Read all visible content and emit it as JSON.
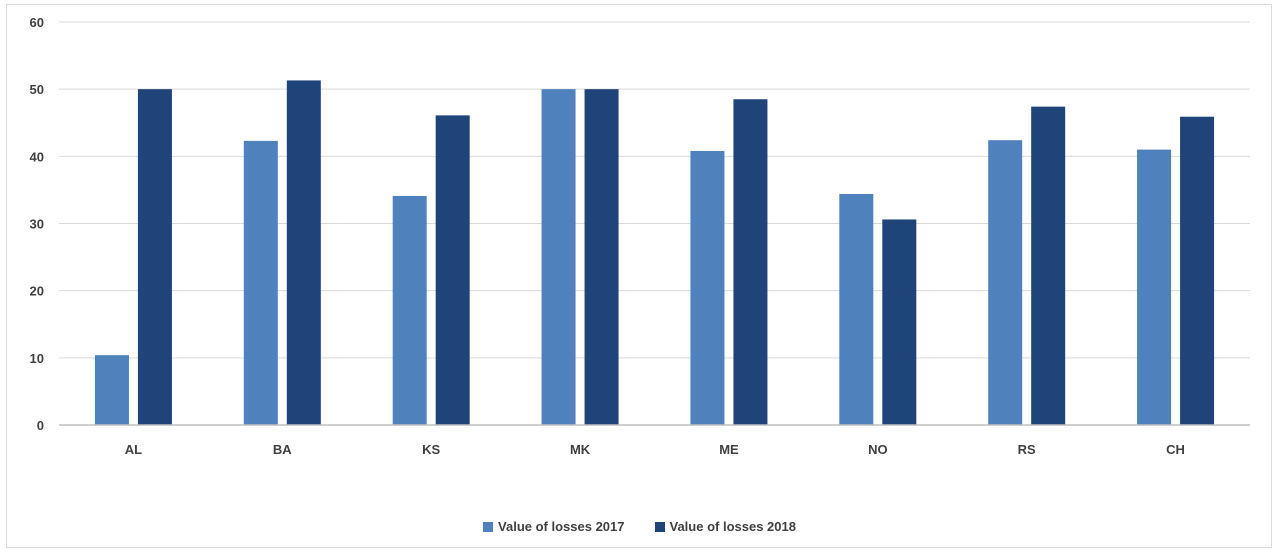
{
  "chart_data": {
    "type": "bar",
    "title": "",
    "xlabel": "",
    "ylabel": "",
    "categories": [
      "AL",
      "BA",
      "KS",
      "MK",
      "ME",
      "NO",
      "RS",
      "CH"
    ],
    "series": [
      {
        "name": "Value of losses 2017",
        "color": "#4f81bd",
        "values": [
          10.4,
          42.3,
          34.1,
          50.0,
          40.8,
          34.4,
          42.4,
          41.0
        ]
      },
      {
        "name": "Value of losses 2018",
        "color": "#1f4479",
        "values": [
          50.0,
          51.3,
          46.1,
          50.0,
          48.5,
          30.6,
          47.4,
          45.9
        ]
      }
    ],
    "ylim": [
      0,
      60
    ],
    "yticks": [
      0,
      10,
      20,
      30,
      40,
      50,
      60
    ],
    "grid": true,
    "legend_position": "bottom"
  }
}
